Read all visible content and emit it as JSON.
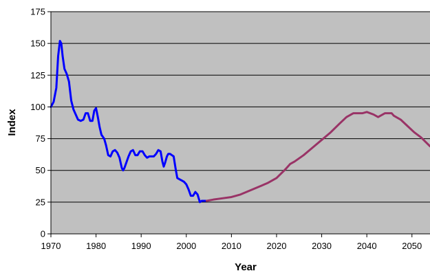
{
  "chart_data": {
    "type": "line",
    "title": "",
    "xlabel": "Year",
    "ylabel": "Index",
    "xlim": [
      1970,
      2054
    ],
    "ylim": [
      0,
      175
    ],
    "xticks": [
      1970,
      1980,
      1990,
      2000,
      2010,
      2020,
      2030,
      2040,
      2050
    ],
    "yticks": [
      0,
      25,
      50,
      75,
      100,
      125,
      150,
      175
    ],
    "grid": true,
    "plot_background": "#c0c0c0",
    "series": [
      {
        "color": "#0000ff",
        "x": [
          1970,
          1970.6,
          1971.2,
          1971.6,
          1972,
          1972.3,
          1972.6,
          1973,
          1973.5,
          1974,
          1974.5,
          1975,
          1975.5,
          1976,
          1976.6,
          1977.2,
          1977.7,
          1978.2,
          1978.7,
          1979.2,
          1979.6,
          1980,
          1980.4,
          1980.8,
          1981.2,
          1981.8,
          1982.2,
          1982.7,
          1983.2,
          1983.7,
          1984.2,
          1984.7,
          1985.2,
          1985.7,
          1986,
          1986.3,
          1986.8,
          1987.2,
          1987.7,
          1988.2,
          1988.7,
          1989.2,
          1989.7,
          1990.3,
          1990.8,
          1991.3,
          1991.8,
          1992.3,
          1992.8,
          1993.3,
          1993.8,
          1994.3,
          1994.7,
          1995,
          1995.3,
          1995.7,
          1996,
          1996.4,
          1996.8,
          1997.2,
          1997.6,
          1998,
          1998.5,
          1999,
          1999.5,
          2000,
          2000.5,
          2001,
          2001.5,
          2002,
          2002.5,
          2003,
          2003.4,
          2004,
          2004.5
        ],
        "y": [
          100,
          104,
          115,
          140,
          152,
          150,
          140,
          130,
          126,
          120,
          105,
          98,
          94,
          90,
          89,
          90,
          95,
          95,
          89,
          89,
          97,
          99,
          92,
          84,
          78,
          75,
          70,
          62,
          61,
          65,
          66,
          64,
          60,
          52,
          50,
          52,
          57,
          61,
          65,
          66,
          62,
          62,
          65,
          65,
          62,
          60,
          61,
          61,
          61,
          63,
          66,
          65,
          57,
          53,
          56,
          61,
          63,
          63,
          62,
          61,
          52,
          44,
          43,
          42,
          41,
          39,
          35,
          30,
          30,
          33,
          31,
          25,
          26,
          26,
          26
        ]
      },
      {
        "color": "#993366",
        "x": [
          2004.5,
          2006,
          2008,
          2010,
          2012,
          2014,
          2016,
          2018,
          2020,
          2022,
          2023,
          2024,
          2026,
          2028,
          2030,
          2032,
          2034,
          2035.5,
          2037,
          2039,
          2040,
          2041.5,
          2042.5,
          2044,
          2045.5,
          2046,
          2047.5,
          2049,
          2050.5,
          2052,
          2054
        ],
        "y": [
          26,
          27,
          28,
          29,
          31,
          34,
          37,
          40,
          44,
          51,
          55,
          57,
          62,
          68,
          74,
          80,
          87,
          92,
          95,
          95,
          96,
          94,
          92,
          95,
          95,
          93,
          90,
          85,
          80,
          76,
          69
        ]
      }
    ]
  }
}
